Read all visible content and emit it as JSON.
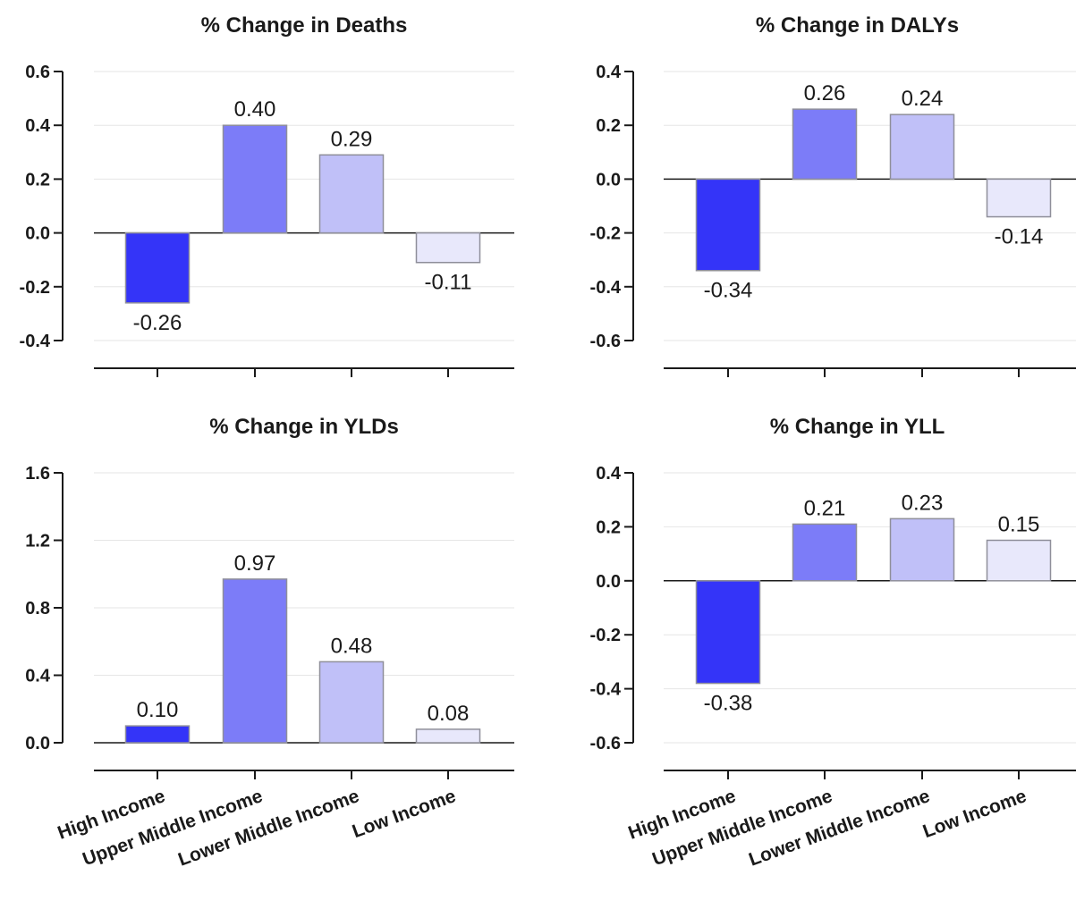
{
  "chart_data": [
    {
      "type": "bar",
      "title": "% Change in Deaths",
      "categories": [
        "High Income",
        "Upper Middle Income",
        "Lower Middle Income",
        "Low Income"
      ],
      "values": [
        -0.26,
        0.4,
        0.29,
        -0.11
      ],
      "value_labels": [
        "-0.26",
        "0.40",
        "0.29",
        "-0.11"
      ],
      "ylim": [
        -0.4,
        0.6
      ],
      "yticks": [
        -0.4,
        -0.2,
        0.0,
        0.2,
        0.4,
        0.6
      ],
      "ytick_labels": [
        "-0.4",
        "-0.2",
        "0.0",
        "0.2",
        "0.4",
        "0.6"
      ],
      "show_category_labels": false,
      "grid": true
    },
    {
      "type": "bar",
      "title": "% Change in DALYs",
      "categories": [
        "High Income",
        "Upper Middle Income",
        "Lower Middle Income",
        "Low Income"
      ],
      "values": [
        -0.34,
        0.26,
        0.24,
        -0.14
      ],
      "value_labels": [
        "-0.34",
        "0.26",
        "0.24",
        "-0.14"
      ],
      "ylim": [
        -0.6,
        0.4
      ],
      "yticks": [
        -0.6,
        -0.4,
        -0.2,
        0.0,
        0.2,
        0.4
      ],
      "ytick_labels": [
        "-0.6",
        "-0.4",
        "-0.2",
        "0.0",
        "0.2",
        "0.4"
      ],
      "show_category_labels": false,
      "grid": true
    },
    {
      "type": "bar",
      "title": "% Change in YLDs",
      "categories": [
        "High Income",
        "Upper Middle Income",
        "Lower Middle Income",
        "Low Income"
      ],
      "values": [
        0.1,
        0.97,
        0.48,
        0.08
      ],
      "value_labels": [
        "0.10",
        "0.97",
        "0.48",
        "0.08"
      ],
      "ylim": [
        0.0,
        1.6
      ],
      "yticks": [
        0.0,
        0.4,
        0.8,
        1.2,
        1.6
      ],
      "ytick_labels": [
        "0.0",
        "0.4",
        "0.8",
        "1.2",
        "1.6"
      ],
      "show_category_labels": true,
      "grid": true
    },
    {
      "type": "bar",
      "title": "% Change in YLL",
      "categories": [
        "High Income",
        "Upper Middle Income",
        "Lower Middle Income",
        "Low Income"
      ],
      "values": [
        -0.38,
        0.21,
        0.23,
        0.15
      ],
      "value_labels": [
        "-0.38",
        "0.21",
        "0.23",
        "0.15"
      ],
      "ylim": [
        -0.6,
        0.4
      ],
      "yticks": [
        -0.6,
        -0.4,
        -0.2,
        0.0,
        0.2,
        0.4
      ],
      "ytick_labels": [
        "-0.6",
        "-0.4",
        "-0.2",
        "0.0",
        "0.2",
        "0.4"
      ],
      "show_category_labels": true,
      "grid": true
    }
  ],
  "colors": {
    "bar_fills": [
      "#3434f8",
      "#7c7cf8",
      "#c0c0f8",
      "#e8e8fb"
    ],
    "bar_stroke": "#8f8f9a",
    "axis": "#1a1a1a",
    "grid": "#e6e6e6",
    "text": "#1a1a1a"
  }
}
